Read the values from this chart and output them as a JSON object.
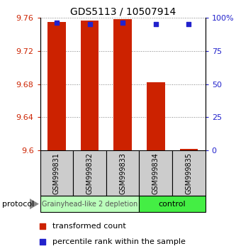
{
  "title": "GDS5113 / 10507914",
  "samples": [
    "GSM999831",
    "GSM999832",
    "GSM999833",
    "GSM999834",
    "GSM999835"
  ],
  "bar_bottom": 9.6,
  "bar_tops": [
    9.755,
    9.756,
    9.758,
    9.682,
    9.602
  ],
  "percentile_ranks": [
    96,
    95,
    96,
    95,
    95
  ],
  "ylim_left": [
    9.6,
    9.76
  ],
  "ylim_right": [
    0,
    100
  ],
  "yticks_left": [
    9.6,
    9.64,
    9.68,
    9.72,
    9.76
  ],
  "ytick_labels_left": [
    "9.6",
    "9.64",
    "9.68",
    "9.72",
    "9.76"
  ],
  "yticks_right": [
    0,
    25,
    50,
    75,
    100
  ],
  "ytick_labels_right": [
    "0",
    "25",
    "50",
    "75",
    "100%"
  ],
  "bar_color": "#cc2200",
  "dot_color": "#2222cc",
  "group1_label": "Grainyhead-like 2 depletion",
  "group2_label": "control",
  "group1_bg": "#bbffbb",
  "group2_bg": "#44ee44",
  "sample_box_bg": "#cccccc",
  "protocol_label": "protocol",
  "legend_bar_label": "transformed count",
  "legend_dot_label": "percentile rank within the sample",
  "tick_color_left": "#cc2200",
  "tick_color_right": "#2222cc",
  "title_fontsize": 10,
  "axis_fontsize": 8,
  "label_fontsize": 8,
  "sample_fontsize": 7,
  "group_fontsize": 7
}
